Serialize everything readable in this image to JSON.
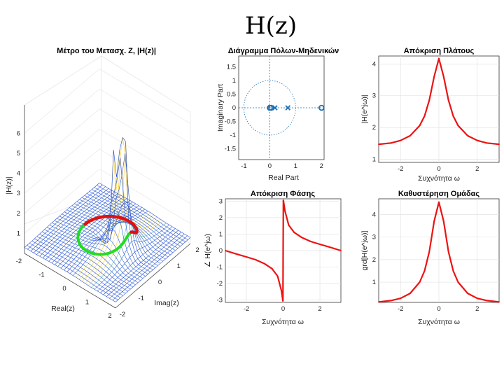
{
  "handwritten_title": "H(z)",
  "chart_data": [
    {
      "id": "surface",
      "type": "surface3d",
      "title": "Μέτρο του Μετασχ. Ζ, |H(z)|",
      "xlabel": "Real(z)",
      "ylabel": "Imag(z)",
      "zlabel": "|H(z)|",
      "x_ticks": [
        "-2",
        "-1",
        "0",
        "1",
        "2"
      ],
      "y_ticks": [
        "-2",
        "-1",
        "0",
        "1",
        "2"
      ],
      "z_ticks": [
        "1",
        "2",
        "3",
        "4",
        "5",
        "6"
      ],
      "xlim": [
        -2,
        2
      ],
      "ylim": [
        -2,
        2
      ],
      "zlim": [
        0,
        6
      ],
      "poles": [
        0.2,
        0.7
      ],
      "zeros": [
        0,
        0,
        2
      ],
      "colors": {
        "mesh": "#3f6fd1",
        "peak": "#f2d23c",
        "unit_circle_bottom": "#22dd22",
        "unit_circle_top": "#e01010"
      },
      "grid": true
    },
    {
      "id": "pole_zero",
      "type": "scatter",
      "title": "Διάγραμμα Πόλων-Μηδενικών",
      "xlabel": "Real Part",
      "ylabel": "Imaginary Part",
      "xlim": [
        -1.2,
        2.1
      ],
      "ylim": [
        -1.9,
        1.9
      ],
      "x_ticks": [
        "-1",
        "0",
        "1",
        "2"
      ],
      "y_ticks": [
        "1.5",
        "1",
        "0.5",
        "0",
        "-0.5",
        "-1",
        "-1.5"
      ],
      "zeros": [
        [
          0,
          0
        ],
        [
          0,
          0
        ],
        [
          2,
          0
        ]
      ],
      "poles": [
        [
          0.2,
          0
        ],
        [
          0.7,
          0
        ]
      ],
      "colors": {
        "marker": "#1f6fb4"
      },
      "grid": false
    },
    {
      "id": "magnitude",
      "type": "line",
      "title": "Απόκριση Πλάτους",
      "xlabel": "Συχνότητα ω",
      "ylabel": "|H(e^jω)|",
      "xlim": [
        -3.14,
        3.14
      ],
      "ylim": [
        0.9,
        4.25
      ],
      "x_ticks": [
        "-2",
        "0",
        "2"
      ],
      "y_ticks": [
        "4",
        "3",
        "2",
        "1"
      ],
      "x": [
        -3.14,
        -2.5,
        -2,
        -1.5,
        -1,
        -0.75,
        -0.5,
        -0.25,
        0,
        0.25,
        0.5,
        0.75,
        1,
        1.5,
        2,
        2.5,
        3.14
      ],
      "values": [
        1.47,
        1.51,
        1.59,
        1.74,
        2.06,
        2.36,
        2.86,
        3.6,
        4.17,
        3.6,
        2.86,
        2.36,
        2.06,
        1.74,
        1.59,
        1.51,
        1.47
      ],
      "colors": {
        "line": "#ee1111"
      },
      "grid": true
    },
    {
      "id": "phase",
      "type": "line",
      "title": "Απόκριση Φάσης",
      "xlabel": "Συχνότητα ω",
      "ylabel": "∠ H(e^jω)",
      "xlim": [
        -3.14,
        3.14
      ],
      "ylim": [
        -3.14,
        3.14
      ],
      "x_ticks": [
        "-2",
        "0",
        "2"
      ],
      "y_ticks": [
        "3",
        "2",
        "1",
        "0",
        "-1",
        "-2",
        "-3"
      ],
      "x": [
        -3.14,
        -2.5,
        -2,
        -1.5,
        -1,
        -0.6,
        -0.3,
        -0.1,
        -0.01,
        0.01,
        0.1,
        0.3,
        0.6,
        1,
        1.5,
        2,
        2.5,
        3.14
      ],
      "values": [
        0,
        -0.22,
        -0.38,
        -0.55,
        -0.8,
        -1.1,
        -1.55,
        -2.4,
        -3.05,
        3.05,
        2.4,
        1.55,
        1.1,
        0.8,
        0.55,
        0.38,
        0.22,
        0
      ],
      "colors": {
        "line": "#ee1111"
      },
      "grid": true
    },
    {
      "id": "group_delay",
      "type": "line",
      "title": "Καθυστέρηση Ομάδας",
      "xlabel": "Συχνότητα ω",
      "ylabel": "grd[H(e^jω)]",
      "xlim": [
        -3.14,
        3.14
      ],
      "ylim": [
        0.1,
        4.7
      ],
      "x_ticks": [
        "-2",
        "0",
        "2"
      ],
      "y_ticks": [
        "4",
        "3",
        "2",
        "1"
      ],
      "x": [
        -3.14,
        -2.5,
        -2,
        -1.5,
        -1,
        -0.75,
        -0.5,
        -0.25,
        0,
        0.25,
        0.5,
        0.75,
        1,
        1.5,
        2,
        2.5,
        3.14
      ],
      "values": [
        0.12,
        0.18,
        0.28,
        0.5,
        1.0,
        1.5,
        2.35,
        3.7,
        4.55,
        3.7,
        2.35,
        1.5,
        1.0,
        0.5,
        0.28,
        0.18,
        0.12
      ],
      "colors": {
        "line": "#ee1111"
      },
      "grid": true
    }
  ]
}
